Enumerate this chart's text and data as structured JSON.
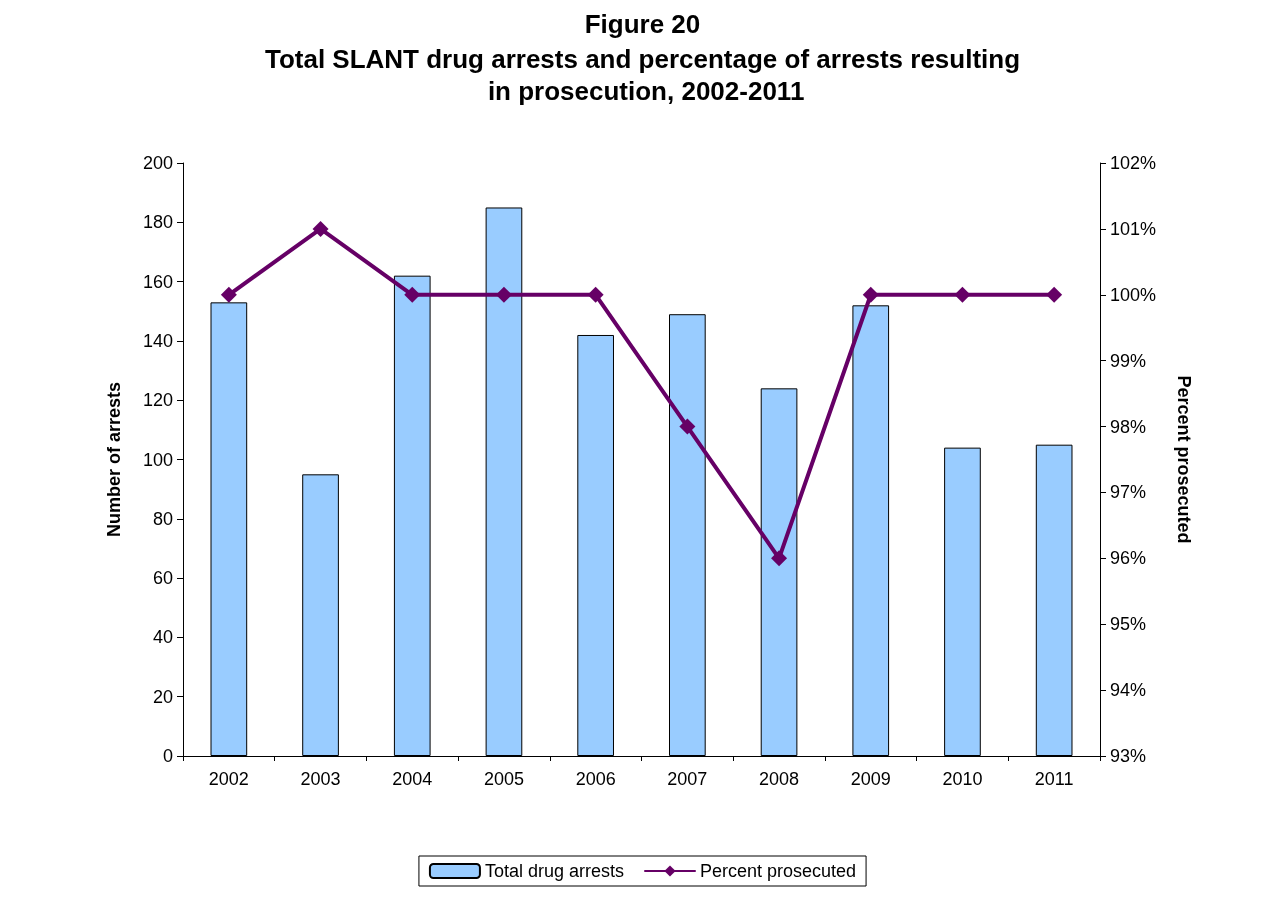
{
  "chart_data": {
    "type": "bar",
    "title": "Figure 20",
    "subtitle": "Total SLANT drug arrests and percentage of arrests resulting in prosecution, 2002-2011",
    "ylabel": "Number of arrests",
    "y2label": "Percent prosecuted",
    "categories": [
      "2002",
      "2003",
      "2004",
      "2005",
      "2006",
      "2007",
      "2008",
      "2009",
      "2010",
      "2011"
    ],
    "series": [
      {
        "name": "Total drug arrests",
        "color": "#99ccff",
        "values": [
          153,
          95,
          162,
          185,
          142,
          149,
          124,
          152,
          104,
          105
        ]
      },
      {
        "name": "Percent prosecuted",
        "type": "line",
        "axis": "y2",
        "color": "#660066",
        "marker": "diamond",
        "values": [
          100,
          101,
          100,
          100,
          100,
          98,
          96,
          100,
          100,
          100
        ]
      }
    ],
    "ylim": [
      0,
      200
    ],
    "yticks": [
      0,
      20,
      40,
      60,
      80,
      100,
      120,
      140,
      160,
      180,
      200
    ],
    "y2lim": [
      93,
      102
    ],
    "y2ticks": [
      {
        "value": 93,
        "label": "93%"
      },
      {
        "value": 94,
        "label": "94%"
      },
      {
        "value": 95,
        "label": "95%"
      },
      {
        "value": 96,
        "label": "96%"
      },
      {
        "value": 97,
        "label": "97%"
      },
      {
        "value": 98,
        "label": "98%"
      },
      {
        "value": 99,
        "label": "99%"
      },
      {
        "value": 100,
        "label": "100%"
      },
      {
        "value": 101,
        "label": "101%"
      },
      {
        "value": 102,
        "label": "102%"
      }
    ],
    "grid": false,
    "legend": "bottom"
  }
}
